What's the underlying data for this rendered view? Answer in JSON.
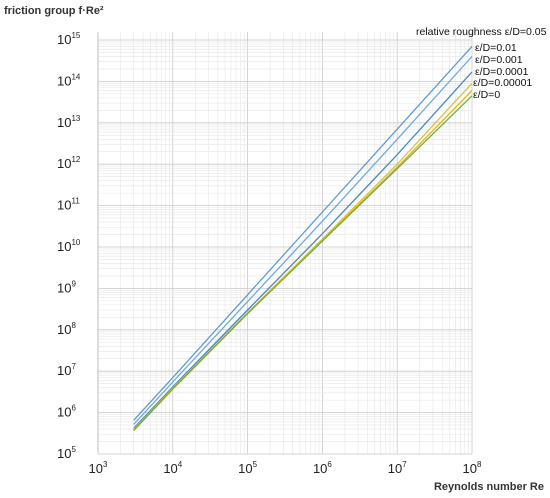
{
  "chart_data": {
    "type": "line",
    "title": "",
    "ylabel": "friction group f·Re²",
    "xlabel": "Reynolds number Re",
    "x_scale": "log",
    "y_scale": "log",
    "xlim": [
      1000,
      100000000
    ],
    "ylim": [
      50000,
      1000000000000000
    ],
    "grid": true,
    "x_ticks": [
      {
        "base": "10",
        "exp": "3"
      },
      {
        "base": "10",
        "exp": "4"
      },
      {
        "base": "10",
        "exp": "5"
      },
      {
        "base": "10",
        "exp": "6"
      },
      {
        "base": "10",
        "exp": "7"
      },
      {
        "base": "10",
        "exp": "8"
      }
    ],
    "y_ticks": [
      {
        "base": "10",
        "exp": "5"
      },
      {
        "base": "10",
        "exp": "6"
      },
      {
        "base": "10",
        "exp": "7"
      },
      {
        "base": "10",
        "exp": "8"
      },
      {
        "base": "10",
        "exp": "9"
      },
      {
        "base": "10",
        "exp": "10"
      },
      {
        "base": "10",
        "exp": "11"
      },
      {
        "base": "10",
        "exp": "12"
      },
      {
        "base": "10",
        "exp": "13"
      },
      {
        "base": "10",
        "exp": "14"
      },
      {
        "base": "10",
        "exp": "15"
      }
    ],
    "x": [
      3000,
      10000,
      100000,
      1000000,
      10000000,
      100000000
    ],
    "series": [
      {
        "name": "relative roughness ε/D=0.05",
        "color": "#5b9bd5",
        "values": [
          650000,
          7000000,
          700000000,
          70000000000,
          7000000000000,
          700000000000000
        ]
      },
      {
        "name": "ε/D=0.01",
        "color": "#6fa8dc",
        "values": [
          520000,
          5500000,
          480000000,
          42000000000,
          4000000000000,
          400000000000000
        ]
      },
      {
        "name": "ε/D=0.001",
        "color": "#4a86c5",
        "values": [
          420000,
          4200000,
          300000000,
          21000000000,
          1700000000000,
          170000000000000
        ]
      },
      {
        "name": "ε/D=0.0001",
        "color": "#d9c24a",
        "values": [
          390000,
          3900000,
          260000000,
          15500000000,
          1000000000000,
          90000000000000
        ]
      },
      {
        "name": "ε/D=0.00001",
        "color": "#e6b800",
        "values": [
          380000,
          3800000,
          250000000,
          14500000000,
          850000000000,
          60000000000000
        ]
      },
      {
        "name": "ε/D=0",
        "color": "#70ad47",
        "values": [
          370000,
          3700000,
          245000000,
          14000000000,
          780000000000,
          45000000000000
        ]
      }
    ]
  }
}
